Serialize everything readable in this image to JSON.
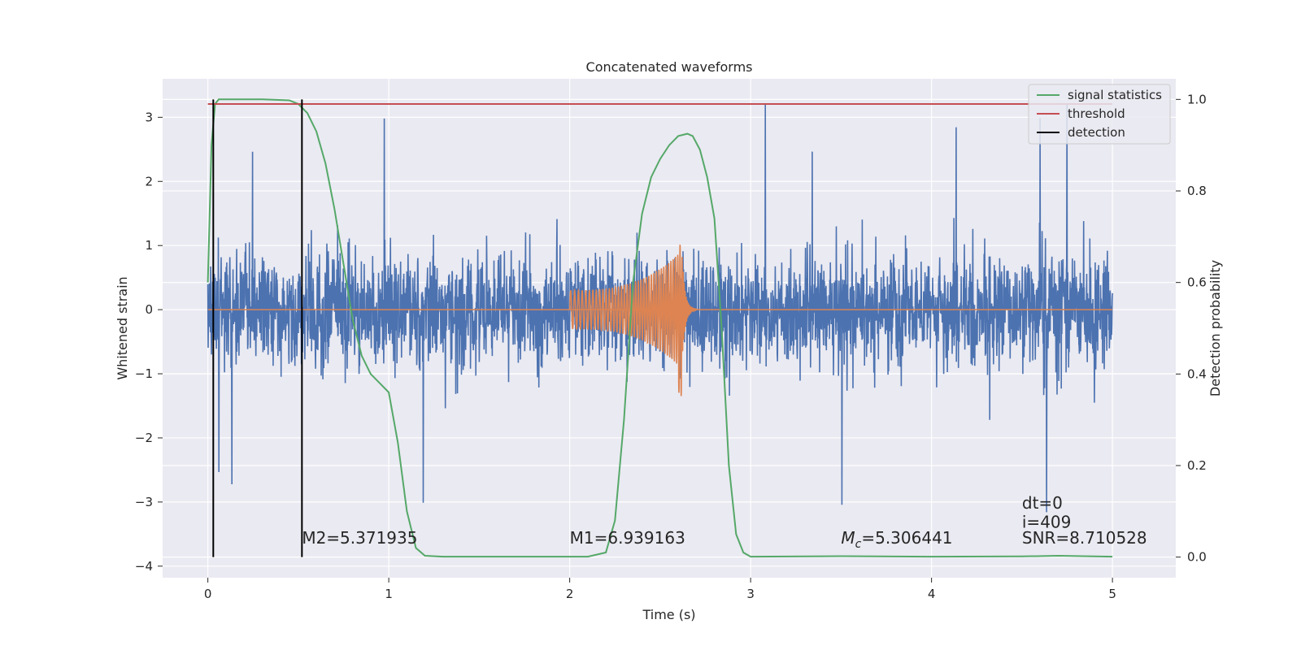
{
  "colors": {
    "background": "#eaeaf2",
    "grid": "#ffffff",
    "strain": "#4c72b0",
    "injected_signal": "#dd8452",
    "signal_statistics": "#55a868",
    "threshold": "#c44e52",
    "detection": "#000000"
  },
  "chart_data": {
    "type": "line",
    "title": "Concatenated waveforms",
    "xlabel": "Time (s)",
    "ylabel": "Whitened strain",
    "y2label": "Detection probability",
    "xlim": [
      -0.25,
      5.35
    ],
    "ylim": [
      -4.18,
      3.6
    ],
    "y2lim": [
      -0.045,
      1.045
    ],
    "xticks": [
      0,
      1,
      2,
      3,
      4,
      5
    ],
    "yticks": [
      -4,
      -3,
      -2,
      -1,
      0,
      1,
      2,
      3
    ],
    "y2ticks": [
      0.0,
      0.2,
      0.4,
      0.6,
      0.8,
      1.0
    ],
    "xtick_labels": [
      "0",
      "1",
      "2",
      "3",
      "4",
      "5"
    ],
    "ytick_labels": [
      "−4",
      "−3",
      "−2",
      "−1",
      "0",
      "1",
      "2",
      "3"
    ],
    "y2tick_labels": [
      "0.0",
      "0.2",
      "0.4",
      "0.6",
      "0.8",
      "1.0"
    ],
    "grid": true,
    "legend_position": "top-right",
    "legend": [
      "signal statistics",
      "threshold",
      "detection"
    ],
    "series": [
      {
        "name": "signal statistics",
        "axis": "right",
        "x": [
          0.0,
          0.02,
          0.04,
          0.06,
          0.1,
          0.3,
          0.45,
          0.5,
          0.55,
          0.6,
          0.65,
          0.7,
          0.75,
          0.8,
          0.85,
          0.9,
          0.95,
          1.0,
          1.05,
          1.1,
          1.15,
          1.2,
          1.3,
          1.8,
          2.1,
          2.2,
          2.25,
          2.3,
          2.35,
          2.4,
          2.45,
          2.5,
          2.55,
          2.6,
          2.65,
          2.68,
          2.72,
          2.76,
          2.8,
          2.84,
          2.88,
          2.92,
          2.96,
          3.0,
          3.5,
          4.0,
          4.5,
          4.7,
          5.0
        ],
        "y": [
          0.6,
          0.9,
          0.99,
          1.0,
          1.0,
          1.0,
          0.998,
          0.99,
          0.97,
          0.93,
          0.86,
          0.76,
          0.64,
          0.52,
          0.44,
          0.4,
          0.38,
          0.36,
          0.25,
          0.1,
          0.02,
          0.003,
          0.001,
          0.001,
          0.001,
          0.01,
          0.08,
          0.3,
          0.6,
          0.75,
          0.83,
          0.87,
          0.9,
          0.92,
          0.925,
          0.92,
          0.89,
          0.83,
          0.74,
          0.5,
          0.2,
          0.05,
          0.01,
          0.001,
          0.002,
          0.001,
          0.0015,
          0.003,
          0.001
        ]
      },
      {
        "name": "threshold",
        "axis": "right",
        "x": [
          0.0,
          5.0
        ],
        "y": [
          0.99,
          0.99
        ]
      }
    ],
    "detections": [
      0.03,
      0.52
    ],
    "detection_range": [
      0.0,
      1.0
    ],
    "noise": {
      "x_range": [
        0.0,
        5.0
      ],
      "max_peak": 3.2,
      "min_trough": -3.75
    },
    "injected_signal": {
      "x_range": [
        2.0,
        3.0
      ],
      "merger_time": 2.62,
      "peak": 1.05,
      "trough": -1.37
    },
    "annotations": [
      {
        "text": "M2=5.371935",
        "x": 0.52,
        "y": -3.65
      },
      {
        "text": "M1=6.939163",
        "x": 2.0,
        "y": -3.65
      },
      {
        "text": "Mc=5.306441",
        "x": 3.5,
        "y": -3.65
      },
      {
        "text": "SNR=8.710528",
        "x": 4.5,
        "y": -3.65
      },
      {
        "text": "dt=0",
        "x": 4.5,
        "y": -3.1
      },
      {
        "text": "i=409",
        "x": 4.5,
        "y": -3.4
      }
    ]
  }
}
